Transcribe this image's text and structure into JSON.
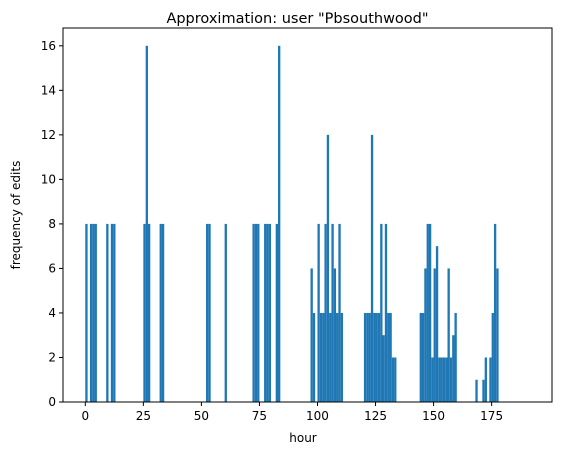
{
  "chart_data": {
    "type": "bar",
    "title": "Approximation: user \"Pbsouthwood\"",
    "xlabel": "hour",
    "ylabel": "frequency of edits",
    "xlim": [
      -9.6,
      201
    ],
    "ylim": [
      0,
      16.8
    ],
    "xticks": [
      0,
      25,
      50,
      75,
      100,
      125,
      150,
      175
    ],
    "yticks": [
      0,
      2,
      4,
      6,
      8,
      10,
      12,
      14,
      16
    ],
    "grid": false,
    "bar_color": "#1f77b4",
    "bin_width": 1,
    "bars": [
      {
        "x": 0,
        "y": 8
      },
      {
        "x": 2,
        "y": 8
      },
      {
        "x": 3,
        "y": 8
      },
      {
        "x": 4,
        "y": 8
      },
      {
        "x": 9,
        "y": 8
      },
      {
        "x": 11,
        "y": 8
      },
      {
        "x": 12,
        "y": 8
      },
      {
        "x": 25,
        "y": 8
      },
      {
        "x": 26,
        "y": 16
      },
      {
        "x": 27,
        "y": 8
      },
      {
        "x": 32,
        "y": 8
      },
      {
        "x": 33,
        "y": 8
      },
      {
        "x": 52,
        "y": 8
      },
      {
        "x": 53,
        "y": 8
      },
      {
        "x": 60,
        "y": 8
      },
      {
        "x": 72,
        "y": 8
      },
      {
        "x": 73,
        "y": 8
      },
      {
        "x": 74,
        "y": 8
      },
      {
        "x": 77,
        "y": 8
      },
      {
        "x": 78,
        "y": 8
      },
      {
        "x": 79,
        "y": 8
      },
      {
        "x": 82,
        "y": 8
      },
      {
        "x": 83,
        "y": 16
      },
      {
        "x": 97,
        "y": 6
      },
      {
        "x": 98,
        "y": 4
      },
      {
        "x": 100,
        "y": 8
      },
      {
        "x": 101,
        "y": 4
      },
      {
        "x": 102,
        "y": 4
      },
      {
        "x": 103,
        "y": 8
      },
      {
        "x": 104,
        "y": 12
      },
      {
        "x": 105,
        "y": 4
      },
      {
        "x": 106,
        "y": 8
      },
      {
        "x": 107,
        "y": 6
      },
      {
        "x": 108,
        "y": 4
      },
      {
        "x": 109,
        "y": 8
      },
      {
        "x": 110,
        "y": 4
      },
      {
        "x": 120,
        "y": 4
      },
      {
        "x": 121,
        "y": 4
      },
      {
        "x": 122,
        "y": 4
      },
      {
        "x": 123,
        "y": 12
      },
      {
        "x": 124,
        "y": 4
      },
      {
        "x": 125,
        "y": 4
      },
      {
        "x": 126,
        "y": 4
      },
      {
        "x": 127,
        "y": 8
      },
      {
        "x": 128,
        "y": 3
      },
      {
        "x": 129,
        "y": 8
      },
      {
        "x": 130,
        "y": 4
      },
      {
        "x": 131,
        "y": 4
      },
      {
        "x": 132,
        "y": 2
      },
      {
        "x": 133,
        "y": 2
      },
      {
        "x": 144,
        "y": 4
      },
      {
        "x": 145,
        "y": 4
      },
      {
        "x": 146,
        "y": 6
      },
      {
        "x": 147,
        "y": 8
      },
      {
        "x": 148,
        "y": 8
      },
      {
        "x": 149,
        "y": 2
      },
      {
        "x": 150,
        "y": 6
      },
      {
        "x": 151,
        "y": 7
      },
      {
        "x": 152,
        "y": 2
      },
      {
        "x": 153,
        "y": 2
      },
      {
        "x": 154,
        "y": 2
      },
      {
        "x": 155,
        "y": 2
      },
      {
        "x": 156,
        "y": 6
      },
      {
        "x": 157,
        "y": 2
      },
      {
        "x": 158,
        "y": 3
      },
      {
        "x": 159,
        "y": 4
      },
      {
        "x": 168,
        "y": 1
      },
      {
        "x": 171,
        "y": 1
      },
      {
        "x": 172,
        "y": 2
      },
      {
        "x": 174,
        "y": 2
      },
      {
        "x": 175,
        "y": 4
      },
      {
        "x": 176,
        "y": 8
      },
      {
        "x": 177,
        "y": 6
      }
    ]
  }
}
